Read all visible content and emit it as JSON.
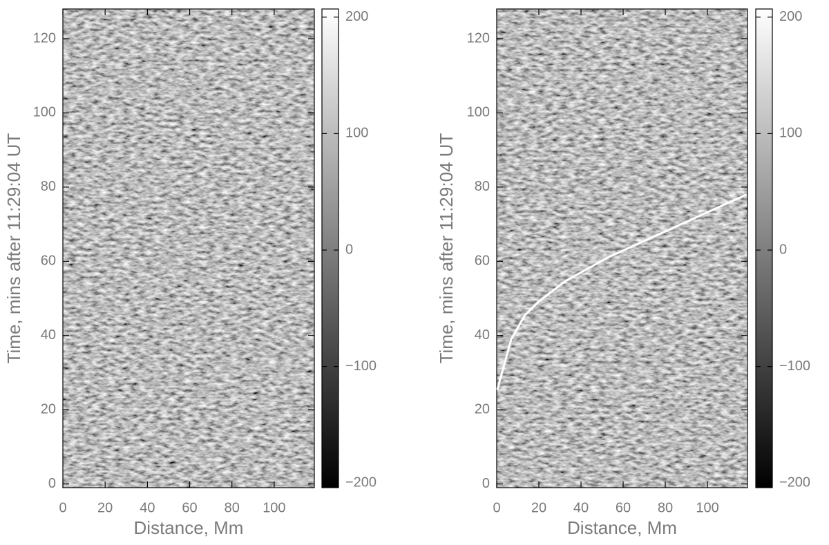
{
  "chart_data": [
    {
      "type": "heatmap",
      "xlabel": "Distance, Mm",
      "ylabel": "Time, mins after 11:29:04 UT",
      "xlim": [
        0,
        119
      ],
      "ylim": [
        -1,
        128
      ],
      "xticks": [
        0,
        20,
        40,
        60,
        80,
        100
      ],
      "yticks": [
        0,
        20,
        40,
        60,
        80,
        100,
        120
      ],
      "colormap": "gray",
      "clim": [
        -204,
        207
      ],
      "cticks": [
        {
          "value": -200,
          "label": "−200"
        },
        {
          "value": -100,
          "label": "−100"
        },
        0,
        100,
        200
      ]
    },
    {
      "type": "heatmap",
      "xlabel": "Distance, Mm",
      "ylabel": "Time, mins after 11:29:04 UT",
      "xlim": [
        0,
        119
      ],
      "ylim": [
        -1,
        128
      ],
      "xticks": [
        0,
        20,
        40,
        60,
        80,
        100
      ],
      "yticks": [
        0,
        20,
        40,
        60,
        80,
        100,
        120
      ],
      "colormap": "gray",
      "clim": [
        -204,
        207
      ],
      "cticks": [
        {
          "value": -200,
          "label": "−200"
        },
        {
          "value": -100,
          "label": "−100"
        },
        0,
        100,
        200
      ],
      "series": [
        {
          "color": "#ffffff",
          "x": [
            0.3,
            6.9,
            13.4,
            20,
            33,
            52.6,
            75.5,
            98.4,
            118.6
          ],
          "values": [
            25.4,
            39,
            45.5,
            49.2,
            54.8,
            61,
            66.9,
            72.8,
            78
          ]
        }
      ]
    }
  ]
}
